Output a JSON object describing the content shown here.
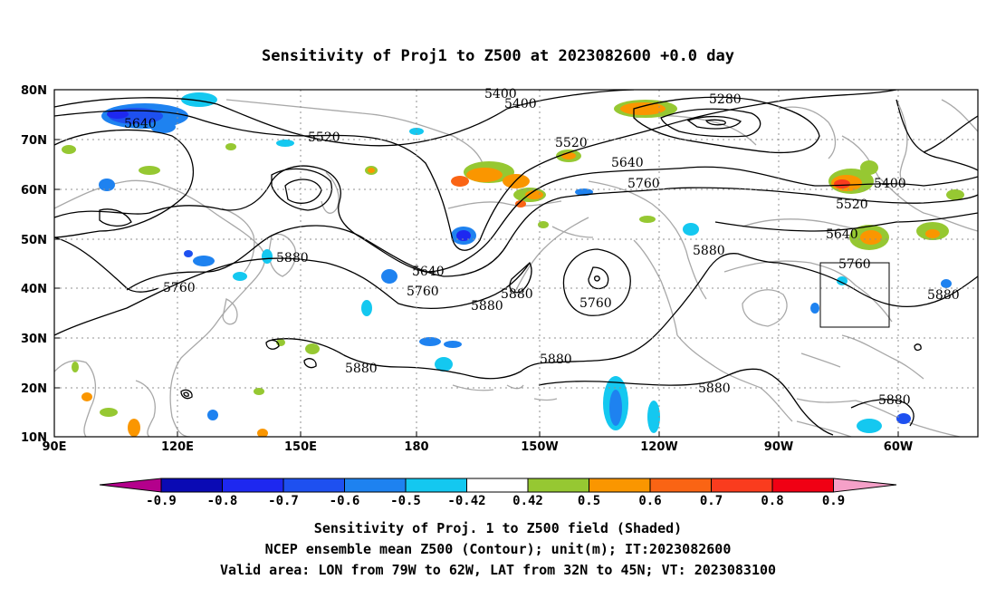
{
  "title": "Sensitivity of Proj1 to Z500 at 2023082600 +0.0 day",
  "map": {
    "lon_labels": [
      "90E",
      "120E",
      "150E",
      "180",
      "150W",
      "120W",
      "90W",
      "60W"
    ],
    "lat_labels": [
      "80N",
      "70N",
      "60N",
      "50N",
      "40N",
      "30N",
      "20N",
      "10N"
    ],
    "contour_labels": [
      "5400",
      "5400",
      "5280",
      "5640",
      "5520",
      "5520",
      "5640",
      "5760",
      "5400",
      "5520",
      "5640",
      "5880",
      "5760",
      "5640",
      "5760",
      "5880",
      "5880",
      "5760",
      "5880",
      "5760",
      "5880",
      "5880",
      "5880",
      "5880",
      "5880"
    ],
    "valid_area_box": {
      "lon_from": "79W",
      "lon_to": "62W",
      "lat_from": "32N",
      "lat_to": "45N"
    }
  },
  "colorbar": {
    "labels": [
      "-0.9",
      "-0.8",
      "-0.7",
      "-0.6",
      "-0.5",
      "-0.42",
      "0.42",
      "0.5",
      "0.6",
      "0.7",
      "0.8",
      "0.9"
    ],
    "colors": [
      "#b4008c",
      "#0a0ab4",
      "#1e28f0",
      "#1e50f0",
      "#1e82f0",
      "#14c8f0",
      "#ffffff",
      "#96c832",
      "#fa9600",
      "#fa6414",
      "#fa3c1e",
      "#f00014",
      "#f5a0c8"
    ]
  },
  "caption": {
    "line1": "Sensitivity of Proj. 1 to Z500 field (Shaded)",
    "line2": "NCEP ensemble mean Z500 (Contour); unit(m); IT:2023082600",
    "line3": "Valid area: LON from 79W to 62W, LAT from 32N to 45N; VT: 2023083100"
  }
}
